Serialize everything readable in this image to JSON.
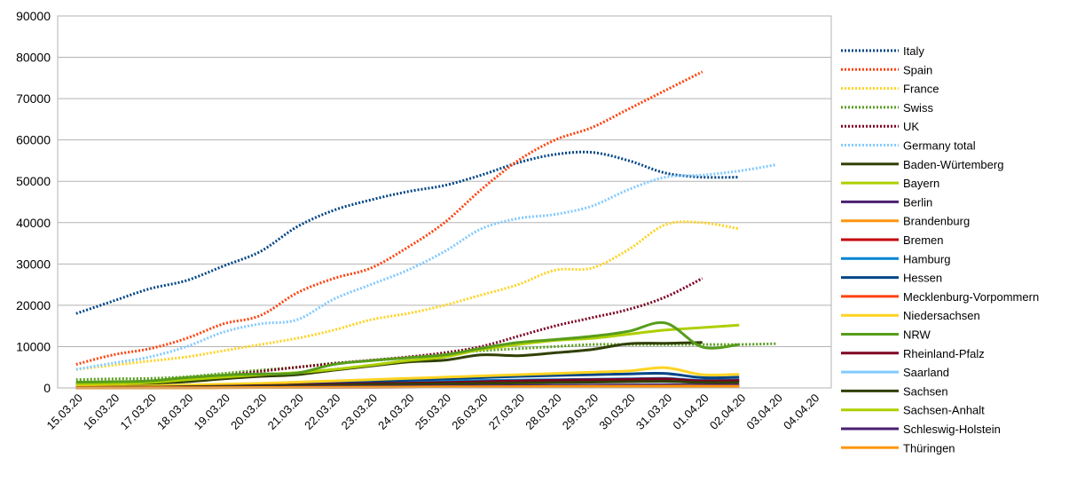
{
  "chart_data": {
    "type": "line",
    "title": "",
    "xlabel": "",
    "ylabel": "",
    "ylim": [
      0,
      90000
    ],
    "yticks": [
      "0",
      "10000",
      "20000",
      "30000",
      "40000",
      "50000",
      "60000",
      "70000",
      "80000",
      "90000"
    ],
    "categories": [
      "15.03.20",
      "16.03.20",
      "17.03.20",
      "18.03.20",
      "19.03.20",
      "20.03.20",
      "21.03.20",
      "22.03.20",
      "23.03.20",
      "24.03.20",
      "25.03.20",
      "26.03.20",
      "27.03.20",
      "28.03.20",
      "29.03.20",
      "30.03.20",
      "31.03.20",
      "01.04.20",
      "02.04.20",
      "03.04.20",
      "04.04.20"
    ],
    "grid": "horizontal",
    "legend_position": "right",
    "series": [
      {
        "name": "Italy",
        "color": "#004586",
        "style": "dotted",
        "values": [
          18000,
          21000,
          24000,
          26000,
          29500,
          33000,
          39000,
          43000,
          45500,
          47500,
          49000,
          51500,
          54500,
          56500,
          57000,
          55000,
          52000,
          51000,
          51000,
          null,
          null
        ]
      },
      {
        "name": "Spain",
        "color": "#ff420e",
        "style": "dotted",
        "values": [
          5700,
          8000,
          9500,
          12000,
          15500,
          17500,
          23000,
          26500,
          29000,
          34000,
          40000,
          48000,
          55000,
          60000,
          63000,
          67500,
          72000,
          76500,
          null,
          null,
          null
        ]
      },
      {
        "name": "France",
        "color": "#ffd320",
        "style": "dotted",
        "values": [
          4500,
          5500,
          6500,
          7500,
          9000,
          10500,
          12000,
          14000,
          16500,
          18000,
          20000,
          22500,
          25000,
          28500,
          29000,
          33500,
          39500,
          40000,
          38500,
          null,
          null
        ]
      },
      {
        "name": "Swiss",
        "color": "#579d1c",
        "style": "dotted",
        "values": [
          2000,
          2200,
          2300,
          2700,
          3500,
          4300,
          5000,
          6000,
          6600,
          7300,
          8300,
          9000,
          9500,
          10000,
          10500,
          10500,
          10500,
          10500,
          10500,
          10700,
          null
        ]
      },
      {
        "name": "UK",
        "color": "#7e0021",
        "style": "dotted",
        "values": [
          1200,
          1400,
          1700,
          2200,
          3000,
          4000,
          5000,
          5900,
          6700,
          7500,
          8500,
          10000,
          12500,
          15000,
          17000,
          19000,
          22000,
          26500,
          null,
          null,
          null
        ]
      },
      {
        "name": "Germany total",
        "color": "#83caff",
        "style": "dotted",
        "values": [
          4500,
          6000,
          7500,
          10000,
          13500,
          15500,
          16500,
          21500,
          25000,
          28500,
          33000,
          38500,
          41000,
          42000,
          44000,
          48000,
          51000,
          51500,
          52500,
          54000,
          null
        ]
      },
      {
        "name": "Baden-Würtemberg",
        "color": "#314004",
        "style": "solid",
        "values": [
          800,
          900,
          1100,
          1500,
          2200,
          2800,
          3200,
          4300,
          5300,
          6300,
          6700,
          8000,
          7800,
          8500,
          9300,
          10700,
          10800,
          11000,
          null,
          null,
          null
        ]
      },
      {
        "name": "Bayern",
        "color": "#aecf00",
        "style": "solid",
        "values": [
          900,
          1000,
          1300,
          2000,
          2600,
          3200,
          3700,
          4500,
          5500,
          6600,
          7500,
          9300,
          10500,
          11500,
          12000,
          13000,
          14000,
          14600,
          15200,
          null,
          null
        ]
      },
      {
        "name": "Berlin",
        "color": "#4b1f6f",
        "style": "solid",
        "values": [
          200,
          250,
          300,
          400,
          500,
          600,
          700,
          800,
          1000,
          1100,
          1300,
          1500,
          1700,
          1800,
          1900,
          2000,
          2100,
          1800,
          1900,
          null,
          null
        ]
      },
      {
        "name": "Brandenburg",
        "color": "#ff950e",
        "style": "solid",
        "values": [
          50,
          60,
          80,
          100,
          130,
          170,
          220,
          280,
          330,
          400,
          450,
          500,
          550,
          600,
          650,
          700,
          700,
          650,
          650,
          null,
          null
        ]
      },
      {
        "name": "Bremen",
        "color": "#c5000b",
        "style": "solid",
        "values": [
          50,
          60,
          70,
          90,
          110,
          130,
          150,
          170,
          190,
          210,
          230,
          250,
          270,
          280,
          290,
          300,
          310,
          300,
          300,
          null,
          null
        ]
      },
      {
        "name": "Hamburg",
        "color": "#0084d1",
        "style": "solid",
        "values": [
          150,
          200,
          300,
          400,
          500,
          600,
          800,
          1000,
          1200,
          1400,
          1600,
          1800,
          1900,
          2000,
          2100,
          2200,
          2300,
          1800,
          1900,
          null,
          null
        ]
      },
      {
        "name": "Hessen",
        "color": "#004586",
        "style": "solid",
        "values": [
          200,
          250,
          350,
          500,
          700,
          900,
          1100,
          1300,
          1600,
          1900,
          2200,
          2500,
          2800,
          3000,
          3200,
          3400,
          3500,
          2500,
          2600,
          null,
          null
        ]
      },
      {
        "name": "Mecklenburg-Vorpommern",
        "color": "#ff420e",
        "style": "solid",
        "values": [
          30,
          40,
          50,
          60,
          80,
          100,
          120,
          150,
          170,
          200,
          220,
          240,
          260,
          280,
          300,
          320,
          330,
          330,
          330,
          null,
          null
        ]
      },
      {
        "name": "Niedersachsen",
        "color": "#ffd320",
        "style": "solid",
        "values": [
          300,
          400,
          500,
          700,
          900,
          1100,
          1400,
          1700,
          2000,
          2300,
          2600,
          2900,
          3200,
          3500,
          3800,
          4100,
          4900,
          3200,
          3300,
          null,
          null
        ]
      },
      {
        "name": "NRW",
        "color": "#579d1c",
        "style": "solid",
        "values": [
          1400,
          1500,
          1700,
          2500,
          3100,
          3400,
          3600,
          5700,
          6600,
          7300,
          8000,
          9600,
          11000,
          11700,
          12500,
          13700,
          15700,
          9900,
          10500,
          null,
          null
        ]
      },
      {
        "name": "Rheinland-Pfalz",
        "color": "#7e0021",
        "style": "solid",
        "values": [
          100,
          150,
          200,
          300,
          400,
          550,
          700,
          850,
          1000,
          1150,
          1300,
          1500,
          1700,
          1850,
          2000,
          2100,
          2200,
          1700,
          1800,
          null,
          null
        ]
      },
      {
        "name": "Saarland",
        "color": "#83caff",
        "style": "solid",
        "values": [
          30,
          50,
          70,
          100,
          130,
          170,
          220,
          280,
          330,
          400,
          450,
          520,
          580,
          640,
          700,
          750,
          800,
          700,
          720,
          null,
          null
        ]
      },
      {
        "name": "Sachsen",
        "color": "#314004",
        "style": "solid",
        "values": [
          100,
          150,
          200,
          250,
          350,
          450,
          550,
          650,
          800,
          900,
          1000,
          1100,
          1200,
          1300,
          1400,
          1500,
          1600,
          1300,
          1350,
          null,
          null
        ]
      },
      {
        "name": "Sachsen-Anhalt",
        "color": "#aecf00",
        "style": "solid",
        "values": [
          20,
          30,
          50,
          70,
          100,
          130,
          170,
          210,
          250,
          300,
          350,
          400,
          450,
          500,
          550,
          600,
          650,
          600,
          620,
          null,
          null
        ]
      },
      {
        "name": "Schleswig-Holstein",
        "color": "#4b1f6f",
        "style": "solid",
        "values": [
          50,
          70,
          90,
          120,
          160,
          200,
          250,
          300,
          350,
          400,
          450,
          500,
          550,
          600,
          650,
          700,
          750,
          700,
          720,
          null,
          null
        ]
      },
      {
        "name": "Thüringen",
        "color": "#ff950e",
        "style": "solid",
        "values": [
          20,
          30,
          40,
          60,
          80,
          100,
          130,
          160,
          190,
          220,
          250,
          280,
          310,
          340,
          370,
          400,
          430,
          400,
          410,
          null,
          null
        ]
      }
    ]
  }
}
